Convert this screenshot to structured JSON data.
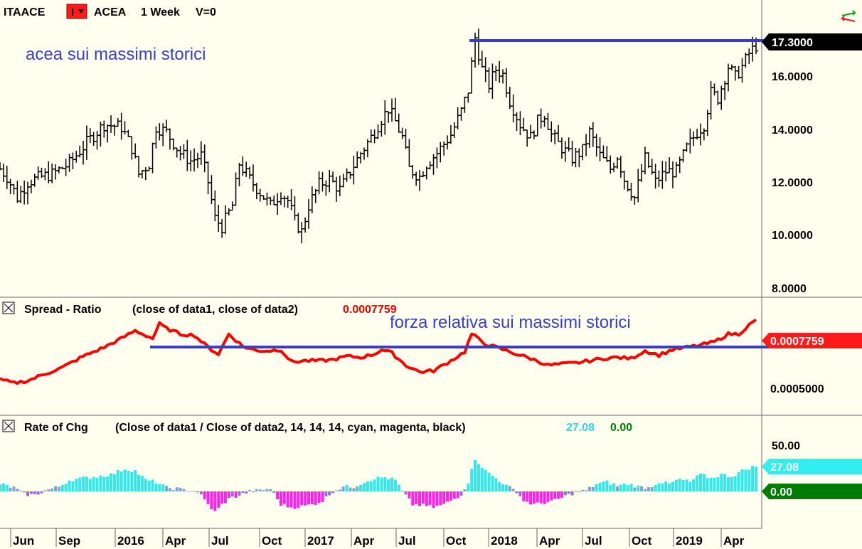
{
  "header": {
    "symbol": "ITAACE",
    "bar_type_label": "I",
    "name": "ACEA",
    "interval": "1 Week",
    "volume_label": "V=0"
  },
  "colors": {
    "background": "#fffff0",
    "price_bars": "#000000",
    "ratio_line": "#ff0000",
    "annotation": "#3a3fc1",
    "cyan": "#33e8ec",
    "magenta": "#ff22ee",
    "zero_badge": "#007c00"
  },
  "panels": {
    "price": {
      "annotation": "acea sui massimi storici",
      "last_value": "17.3000",
      "ticks": [
        "8.0000",
        "10.0000",
        "12.0000",
        "14.0000",
        "16.0000"
      ]
    },
    "spread": {
      "title": "Spread - Ratio",
      "params": "(close of data1,  close of data2)",
      "value": "0.0007759",
      "annotation": "forza relativa sui massimi storici",
      "ticks": [
        "0.0005000"
      ],
      "last_value": "0.0007759"
    },
    "roc": {
      "title": "Rate of Chg",
      "params": "(Close of data1 / Close of data2,  14,  14,  14,  cyan,  magenta,  black)",
      "value": "27.08",
      "value_zero": "0.00",
      "ticks": [
        "50.00"
      ],
      "last_value": "27.08",
      "zero_value": "0.00"
    }
  },
  "date_axis": [
    "Jun",
    "Sep",
    "2016",
    "Apr",
    "Jul",
    "Oct",
    "2017",
    "Apr",
    "Jul",
    "Oct",
    "2018",
    "Apr",
    "Jul",
    "Oct",
    "2019",
    "Apr"
  ],
  "chart_data": [
    {
      "type": "line",
      "series_kind": "weekly-ohlc-bars",
      "x_range": [
        "2015-05",
        "2019-06"
      ],
      "y_range": [
        7.5,
        18.3
      ],
      "anchors": [
        [
          0,
          12.4
        ],
        [
          2,
          12.1
        ],
        [
          5,
          11.3
        ],
        [
          8,
          11.9
        ],
        [
          12,
          12.1
        ],
        [
          15,
          12.2
        ],
        [
          20,
          12.6
        ],
        [
          25,
          13.4
        ],
        [
          30,
          14.1
        ],
        [
          35,
          14.0
        ],
        [
          38,
          13.2
        ],
        [
          40,
          12.2
        ],
        [
          43,
          12.6
        ],
        [
          45,
          14.0
        ],
        [
          48,
          13.8
        ],
        [
          52,
          13.0
        ],
        [
          55,
          12.7
        ],
        [
          58,
          12.9
        ],
        [
          60,
          11.9
        ],
        [
          62,
          10.5
        ],
        [
          64,
          10.2
        ],
        [
          67,
          11.0
        ],
        [
          69,
          12.6
        ],
        [
          72,
          12.0
        ],
        [
          75,
          11.5
        ],
        [
          78,
          11.0
        ],
        [
          81,
          11.5
        ],
        [
          83,
          11.2
        ],
        [
          85,
          10.4
        ],
        [
          87,
          10.0
        ],
        [
          89,
          11.0
        ],
        [
          92,
          11.8
        ],
        [
          95,
          12.0
        ],
        [
          98,
          11.6
        ],
        [
          101,
          12.3
        ],
        [
          104,
          13.0
        ],
        [
          107,
          13.6
        ],
        [
          110,
          14.3
        ],
        [
          112,
          14.7
        ],
        [
          114,
          14.2
        ],
        [
          116,
          13.6
        ],
        [
          118,
          12.4
        ],
        [
          121,
          12.1
        ],
        [
          123,
          12.6
        ],
        [
          126,
          13.0
        ],
        [
          130,
          13.7
        ],
        [
          133,
          14.6
        ],
        [
          135,
          15.4
        ],
        [
          137,
          17.4
        ],
        [
          139,
          16.2
        ],
        [
          141,
          15.6
        ],
        [
          143,
          16.2
        ],
        [
          145,
          16.0
        ],
        [
          147,
          15.0
        ],
        [
          150,
          14.1
        ],
        [
          153,
          13.6
        ],
        [
          155,
          14.2
        ],
        [
          157,
          14.5
        ],
        [
          159,
          13.7
        ],
        [
          162,
          13.2
        ],
        [
          165,
          12.8
        ],
        [
          168,
          13.1
        ],
        [
          170,
          13.8
        ],
        [
          173,
          12.9
        ],
        [
          176,
          12.4
        ],
        [
          178,
          12.9
        ],
        [
          180,
          12.0
        ],
        [
          183,
          11.3
        ],
        [
          186,
          12.8
        ],
        [
          189,
          11.9
        ],
        [
          192,
          12.3
        ],
        [
          195,
          12.3
        ],
        [
          198,
          13.2
        ],
        [
          201,
          13.8
        ],
        [
          203,
          14.1
        ],
        [
          205,
          15.3
        ],
        [
          207,
          15.1
        ],
        [
          210,
          16.3
        ],
        [
          212,
          15.9
        ],
        [
          214,
          16.3
        ],
        [
          216,
          16.8
        ],
        [
          218,
          17.1
        ]
      ]
    },
    {
      "type": "line",
      "series_kind": "spread-ratio",
      "x_range": [
        "2015-05",
        "2019-06"
      ],
      "y_range": [
        0.00035,
        0.00088
      ],
      "anchors": [
        [
          0,
          0.00051
        ],
        [
          4,
          0.000495
        ],
        [
          8,
          0.000505
        ],
        [
          12,
          0.00053
        ],
        [
          18,
          0.000565
        ],
        [
          24,
          0.000615
        ],
        [
          30,
          0.000655
        ],
        [
          35,
          0.000695
        ],
        [
          39,
          0.00073
        ],
        [
          44,
          0.000695
        ],
        [
          46,
          0.00076
        ],
        [
          48,
          0.00074
        ],
        [
          52,
          0.000715
        ],
        [
          56,
          0.00071
        ],
        [
          60,
          0.000655
        ],
        [
          63,
          0.000625
        ],
        [
          66,
          0.000715
        ],
        [
          70,
          0.00066
        ],
        [
          74,
          0.00064
        ],
        [
          78,
          0.00064
        ],
        [
          81,
          0.000645
        ],
        [
          84,
          0.00059
        ],
        [
          88,
          0.000595
        ],
        [
          92,
          0.000595
        ],
        [
          96,
          0.0006
        ],
        [
          100,
          0.000615
        ],
        [
          104,
          0.00061
        ],
        [
          108,
          0.000625
        ],
        [
          110,
          0.000645
        ],
        [
          113,
          0.00063
        ],
        [
          117,
          0.000575
        ],
        [
          121,
          0.000545
        ],
        [
          125,
          0.00055
        ],
        [
          130,
          0.000595
        ],
        [
          134,
          0.000635
        ],
        [
          136,
          0.000715
        ],
        [
          140,
          0.00067
        ],
        [
          145,
          0.000645
        ],
        [
          150,
          0.00062
        ],
        [
          154,
          0.0006
        ],
        [
          158,
          0.000575
        ],
        [
          162,
          0.00058
        ],
        [
          166,
          0.000585
        ],
        [
          170,
          0.000595
        ],
        [
          174,
          0.000605
        ],
        [
          178,
          0.00061
        ],
        [
          182,
          0.000605
        ],
        [
          186,
          0.00064
        ],
        [
          190,
          0.00062
        ],
        [
          194,
          0.000645
        ],
        [
          198,
          0.000655
        ],
        [
          202,
          0.000665
        ],
        [
          206,
          0.00068
        ],
        [
          210,
          0.000715
        ],
        [
          213,
          0.000715
        ],
        [
          216,
          0.000755
        ],
        [
          218,
          0.000776
        ]
      ]
    },
    {
      "type": "bar",
      "series_kind": "rate-of-change-histogram",
      "y_range": [
        -55,
        62
      ],
      "anchors": [
        [
          0,
          8
        ],
        [
          4,
          4
        ],
        [
          7,
          -3
        ],
        [
          10,
          -4
        ],
        [
          13,
          1
        ],
        [
          17,
          5
        ],
        [
          20,
          12
        ],
        [
          24,
          14
        ],
        [
          28,
          16
        ],
        [
          32,
          18
        ],
        [
          36,
          24
        ],
        [
          39,
          22
        ],
        [
          42,
          12
        ],
        [
          45,
          10
        ],
        [
          48,
          4
        ],
        [
          51,
          3
        ],
        [
          54,
          1
        ],
        [
          57,
          0
        ],
        [
          60,
          -14
        ],
        [
          62,
          -22
        ],
        [
          64,
          -14
        ],
        [
          66,
          -8
        ],
        [
          69,
          -4
        ],
        [
          72,
          0
        ],
        [
          75,
          1
        ],
        [
          78,
          3
        ],
        [
          81,
          -14
        ],
        [
          84,
          -17
        ],
        [
          87,
          -16
        ],
        [
          90,
          -14
        ],
        [
          93,
          -10
        ],
        [
          96,
          0
        ],
        [
          99,
          5
        ],
        [
          102,
          5
        ],
        [
          105,
          10
        ],
        [
          108,
          14
        ],
        [
          111,
          15
        ],
        [
          114,
          12
        ],
        [
          116,
          0
        ],
        [
          119,
          -14
        ],
        [
          122,
          -15
        ],
        [
          125,
          -17
        ],
        [
          128,
          -14
        ],
        [
          131,
          -8
        ],
        [
          133,
          -3
        ],
        [
          135,
          10
        ],
        [
          137,
          35
        ],
        [
          140,
          22
        ],
        [
          143,
          14
        ],
        [
          146,
          6
        ],
        [
          149,
          0
        ],
        [
          151,
          -10
        ],
        [
          154,
          -14
        ],
        [
          157,
          -12
        ],
        [
          160,
          -10
        ],
        [
          163,
          -5
        ],
        [
          166,
          -1
        ],
        [
          169,
          1
        ],
        [
          172,
          8
        ],
        [
          175,
          10
        ],
        [
          178,
          6
        ],
        [
          181,
          8
        ],
        [
          184,
          5
        ],
        [
          187,
          4
        ],
        [
          190,
          10
        ],
        [
          193,
          8
        ],
        [
          196,
          13
        ],
        [
          199,
          10
        ],
        [
          202,
          18
        ],
        [
          205,
          14
        ],
        [
          208,
          18
        ],
        [
          211,
          16
        ],
        [
          214,
          22
        ],
        [
          216,
          25
        ],
        [
          218,
          27.08
        ]
      ]
    }
  ]
}
